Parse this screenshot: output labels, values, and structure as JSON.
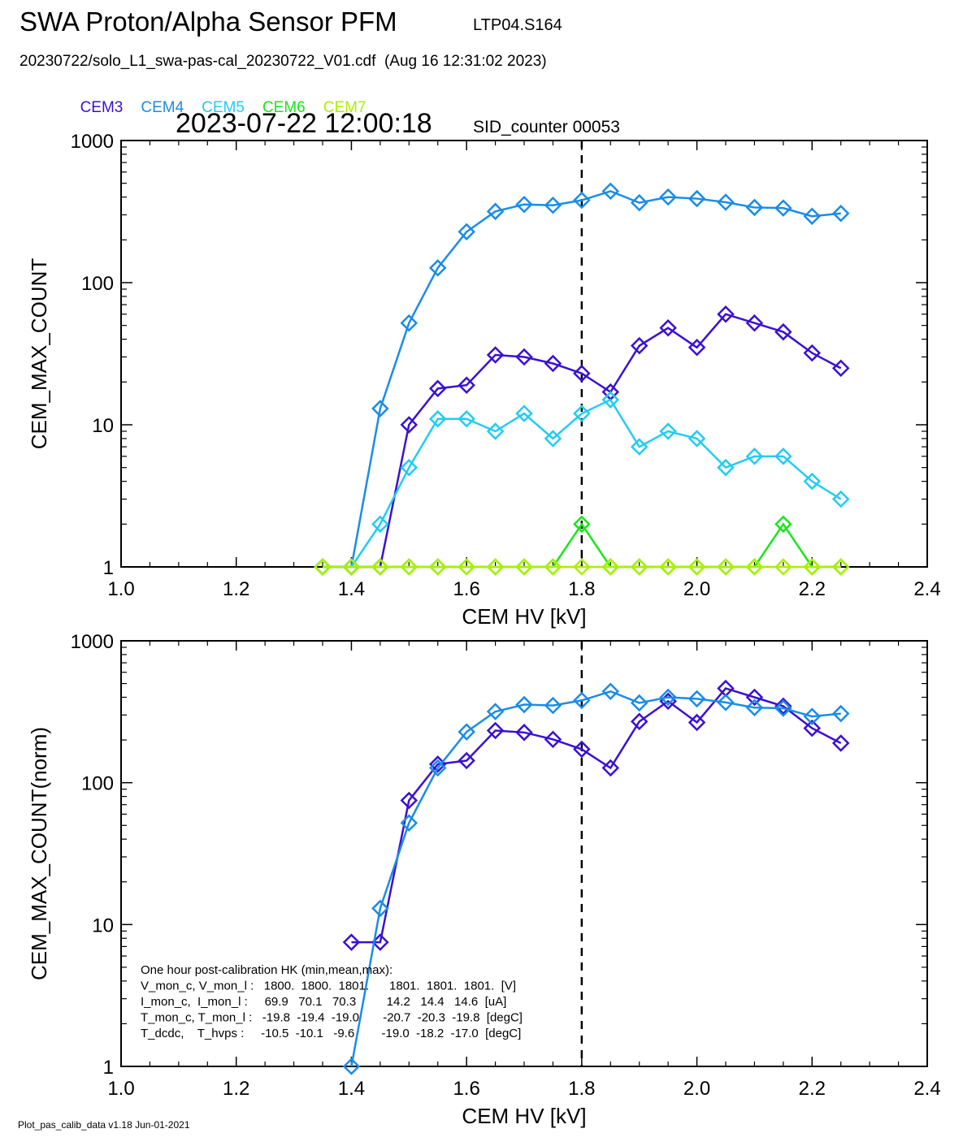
{
  "header": {
    "title": "SWA Proton/Alpha Sensor PFM",
    "run_id": "LTP04.S164",
    "file_line": "20230722/solo_L1_swa-pas-cal_20230722_V01.cdf  (Aug 16 12:31:02 2023)",
    "timestamp": "2023-07-22 12:00:18",
    "sid_counter": "SID_counter 00053"
  },
  "legend": [
    {
      "name": "CEM3",
      "color": "#3b10d4"
    },
    {
      "name": "CEM4",
      "color": "#1a8ce8"
    },
    {
      "name": "CEM5",
      "color": "#22ccf2"
    },
    {
      "name": "CEM6",
      "color": "#1ae61a"
    },
    {
      "name": "CEM7",
      "color": "#aaf000"
    }
  ],
  "hk_box": {
    "lines": [
      "One hour post-calibration HK (min,mean,max):",
      "V_mon_c, V_mon_l :   1800.  1800.  1801.      1801.  1801.  1801.  [V]",
      "I_mon_c,  I_mon_l :     69.9   70.1   70.3         14.2   14.4   14.6  [uA]",
      "T_mon_c, T_mon_l :   -19.8  -19.4  -19.0       -20.7  -20.3  -19.8  [degC]",
      "T_dcdc,    T_hvps :     -10.5  -10.1   -9.6        -19.0  -18.2  -17.0  [degC]"
    ]
  },
  "footer": "Plot_pas_calib_data v1.18 Jun-01-2021",
  "chart_data": [
    {
      "type": "line",
      "xlabel": "CEM HV [kV]",
      "ylabel": "CEM_MAX_COUNT",
      "xlim": [
        1.0,
        2.4
      ],
      "ylim": [
        1,
        1000
      ],
      "yscale": "log",
      "xticks": [
        "1.0",
        "1.2",
        "1.4",
        "1.6",
        "1.8",
        "2.0",
        "2.2",
        "2.4"
      ],
      "yticks": [
        "1",
        "10",
        "100",
        "1000"
      ],
      "vline": 1.8,
      "series": [
        {
          "name": "CEM3",
          "color": "#3b10d4",
          "x": [
            1.35,
            1.4,
            1.45,
            1.5,
            1.55,
            1.6,
            1.65,
            1.7,
            1.75,
            1.8,
            1.85,
            1.9,
            1.95,
            2.0,
            2.05,
            2.1,
            2.15,
            2.2,
            2.25
          ],
          "y": [
            1,
            1,
            1,
            10,
            18,
            19,
            31,
            30,
            27,
            23,
            17,
            36,
            48,
            35,
            60,
            52,
            45,
            32,
            25
          ]
        },
        {
          "name": "CEM4",
          "color": "#1a8ce8",
          "x": [
            1.35,
            1.4,
            1.45,
            1.5,
            1.55,
            1.6,
            1.65,
            1.7,
            1.75,
            1.8,
            1.85,
            1.9,
            1.95,
            2.0,
            2.05,
            2.1,
            2.15,
            2.2,
            2.25
          ],
          "y": [
            1,
            1,
            13,
            52,
            127,
            228,
            317,
            355,
            350,
            380,
            440,
            365,
            400,
            390,
            368,
            338,
            335,
            293,
            307
          ]
        },
        {
          "name": "CEM5",
          "color": "#22ccf2",
          "x": [
            1.35,
            1.4,
            1.45,
            1.5,
            1.55,
            1.6,
            1.65,
            1.7,
            1.75,
            1.8,
            1.85,
            1.9,
            1.95,
            2.0,
            2.05,
            2.1,
            2.15,
            2.2,
            2.25
          ],
          "y": [
            1,
            1,
            2,
            5,
            11,
            11,
            9,
            12,
            8,
            12,
            15,
            7,
            9,
            8,
            5,
            6,
            6,
            4,
            3
          ]
        },
        {
          "name": "CEM6",
          "color": "#1ae61a",
          "x": [
            1.35,
            1.4,
            1.45,
            1.5,
            1.55,
            1.6,
            1.65,
            1.7,
            1.75,
            1.8,
            1.85,
            1.9,
            1.95,
            2.0,
            2.05,
            2.1,
            2.15,
            2.2,
            2.25
          ],
          "y": [
            1,
            1,
            1,
            1,
            1,
            1,
            1,
            1,
            1,
            2,
            1,
            1,
            1,
            1,
            1,
            1,
            2,
            1,
            1
          ]
        },
        {
          "name": "CEM7",
          "color": "#aaf000",
          "x": [
            1.35,
            1.4,
            1.45,
            1.5,
            1.55,
            1.6,
            1.65,
            1.7,
            1.75,
            1.8,
            1.85,
            1.9,
            1.95,
            2.0,
            2.05,
            2.1,
            2.15,
            2.2,
            2.25
          ],
          "y": [
            1,
            1,
            1,
            1,
            1,
            1,
            1,
            1,
            1,
            1,
            1,
            1,
            1,
            1,
            1,
            1,
            1,
            1,
            1
          ]
        }
      ]
    },
    {
      "type": "line",
      "xlabel": "CEM HV [kV]",
      "ylabel": "CEM_MAX_COUNT(norm)",
      "xlim": [
        1.0,
        2.4
      ],
      "ylim": [
        1,
        1000
      ],
      "yscale": "log",
      "xticks": [
        "1.0",
        "1.2",
        "1.4",
        "1.6",
        "1.8",
        "2.0",
        "2.2",
        "2.4"
      ],
      "yticks": [
        "1",
        "10",
        "100",
        "1000"
      ],
      "vline": 1.8,
      "series": [
        {
          "name": "CEM3",
          "color": "#3b10d4",
          "x": [
            1.4,
            1.45,
            1.5,
            1.55,
            1.6,
            1.65,
            1.7,
            1.75,
            1.8,
            1.85,
            1.9,
            1.95,
            2.0,
            2.05,
            2.1,
            2.15,
            2.2,
            2.25
          ],
          "y": [
            7.5,
            7.5,
            75,
            135,
            143,
            233,
            226,
            202,
            172,
            127,
            270,
            375,
            266,
            462,
            400,
            346,
            242,
            190
          ]
        },
        {
          "name": "CEM4",
          "color": "#1a8ce8",
          "x": [
            1.4,
            1.45,
            1.5,
            1.55,
            1.6,
            1.65,
            1.7,
            1.75,
            1.8,
            1.85,
            1.9,
            1.95,
            2.0,
            2.05,
            2.1,
            2.15,
            2.2,
            2.25
          ],
          "y": [
            1,
            13,
            52,
            127,
            228,
            317,
            355,
            350,
            380,
            440,
            365,
            400,
            390,
            368,
            338,
            335,
            293,
            307
          ]
        }
      ]
    }
  ]
}
